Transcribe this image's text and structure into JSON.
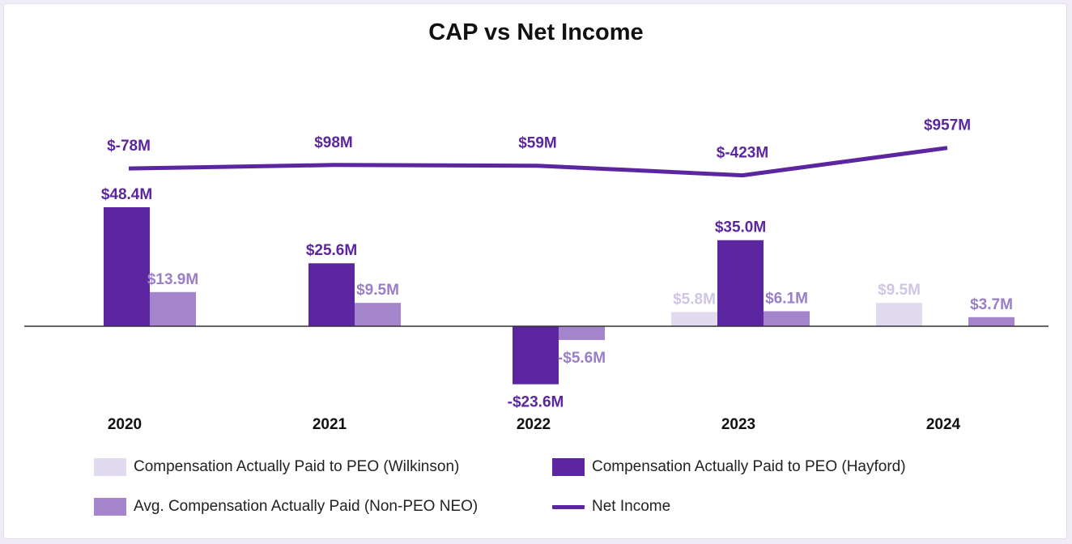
{
  "chart_data": {
    "type": "bar",
    "title": "CAP vs Net Income",
    "categories": [
      "2020",
      "2021",
      "2022",
      "2023",
      "2024"
    ],
    "series": [
      {
        "name": "Compensation Actually Paid to PEO (Wilkinson)",
        "color": "#e2dbef",
        "label_color": "#cfc6e6",
        "values": [
          null,
          null,
          null,
          5.8,
          9.5
        ],
        "labels": [
          null,
          null,
          null,
          "$5.8M",
          "$9.5M"
        ]
      },
      {
        "name": "Compensation Actually Paid to PEO (Hayford)",
        "color": "#5c26a0",
        "label_color": "#5c26a0",
        "values": [
          48.4,
          25.6,
          -23.6,
          35.0,
          null
        ],
        "labels": [
          "$48.4M",
          "$25.6M",
          "-$23.6M",
          "$35.0M",
          null
        ]
      },
      {
        "name": "Avg. Compensation Actually Paid (Non-PEO NEO)",
        "color": "#a484cb",
        "label_color": "#9a7ec7",
        "values": [
          13.9,
          9.5,
          -5.6,
          6.1,
          3.7
        ],
        "labels": [
          "$13.9M",
          "$9.5M",
          "-$5.6M",
          "$6.1M",
          "$3.7M"
        ]
      }
    ],
    "line": {
      "name": "Net Income",
      "color": "#5c26a0",
      "values": [
        -78,
        98,
        59,
        -423,
        957
      ],
      "labels": [
        "$-78M",
        "$98M",
        "$59M",
        "$-423M",
        "$957M"
      ]
    },
    "bar_unit": "$M",
    "line_unit": "$M",
    "legend_position": "bottom"
  }
}
